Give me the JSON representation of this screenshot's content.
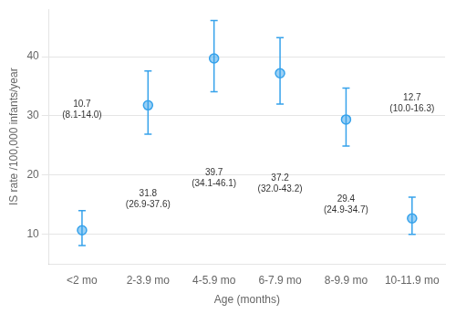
{
  "chart_data": {
    "type": "scatter",
    "categories": [
      "<2 mo",
      "2-3.9 mo",
      "4-5.9 mo",
      "6-7.9 mo",
      "8-9.9 mo",
      "10-11.9 mo"
    ],
    "values": [
      10.7,
      31.8,
      39.7,
      37.2,
      29.4,
      12.7
    ],
    "ci_lower": [
      8.1,
      26.9,
      34.1,
      32.0,
      24.9,
      10.0
    ],
    "ci_upper": [
      14.0,
      37.6,
      46.1,
      43.2,
      34.7,
      16.3
    ],
    "xlabel": "Age (months)",
    "ylabel": "IS rate /100,000 infants/year",
    "ylim": [
      5,
      48
    ],
    "yticks": [
      10,
      20,
      30,
      40
    ],
    "grid": true,
    "annotations": [
      "10.7\n(8.1-14.0)",
      "31.8\n(26.9-37.6)",
      "39.7\n(34.1-46.1)",
      "37.2\n(32.0-43.2)",
      "29.4\n(24.9-34.7)",
      "12.7\n(10.0-16.3)"
    ]
  }
}
